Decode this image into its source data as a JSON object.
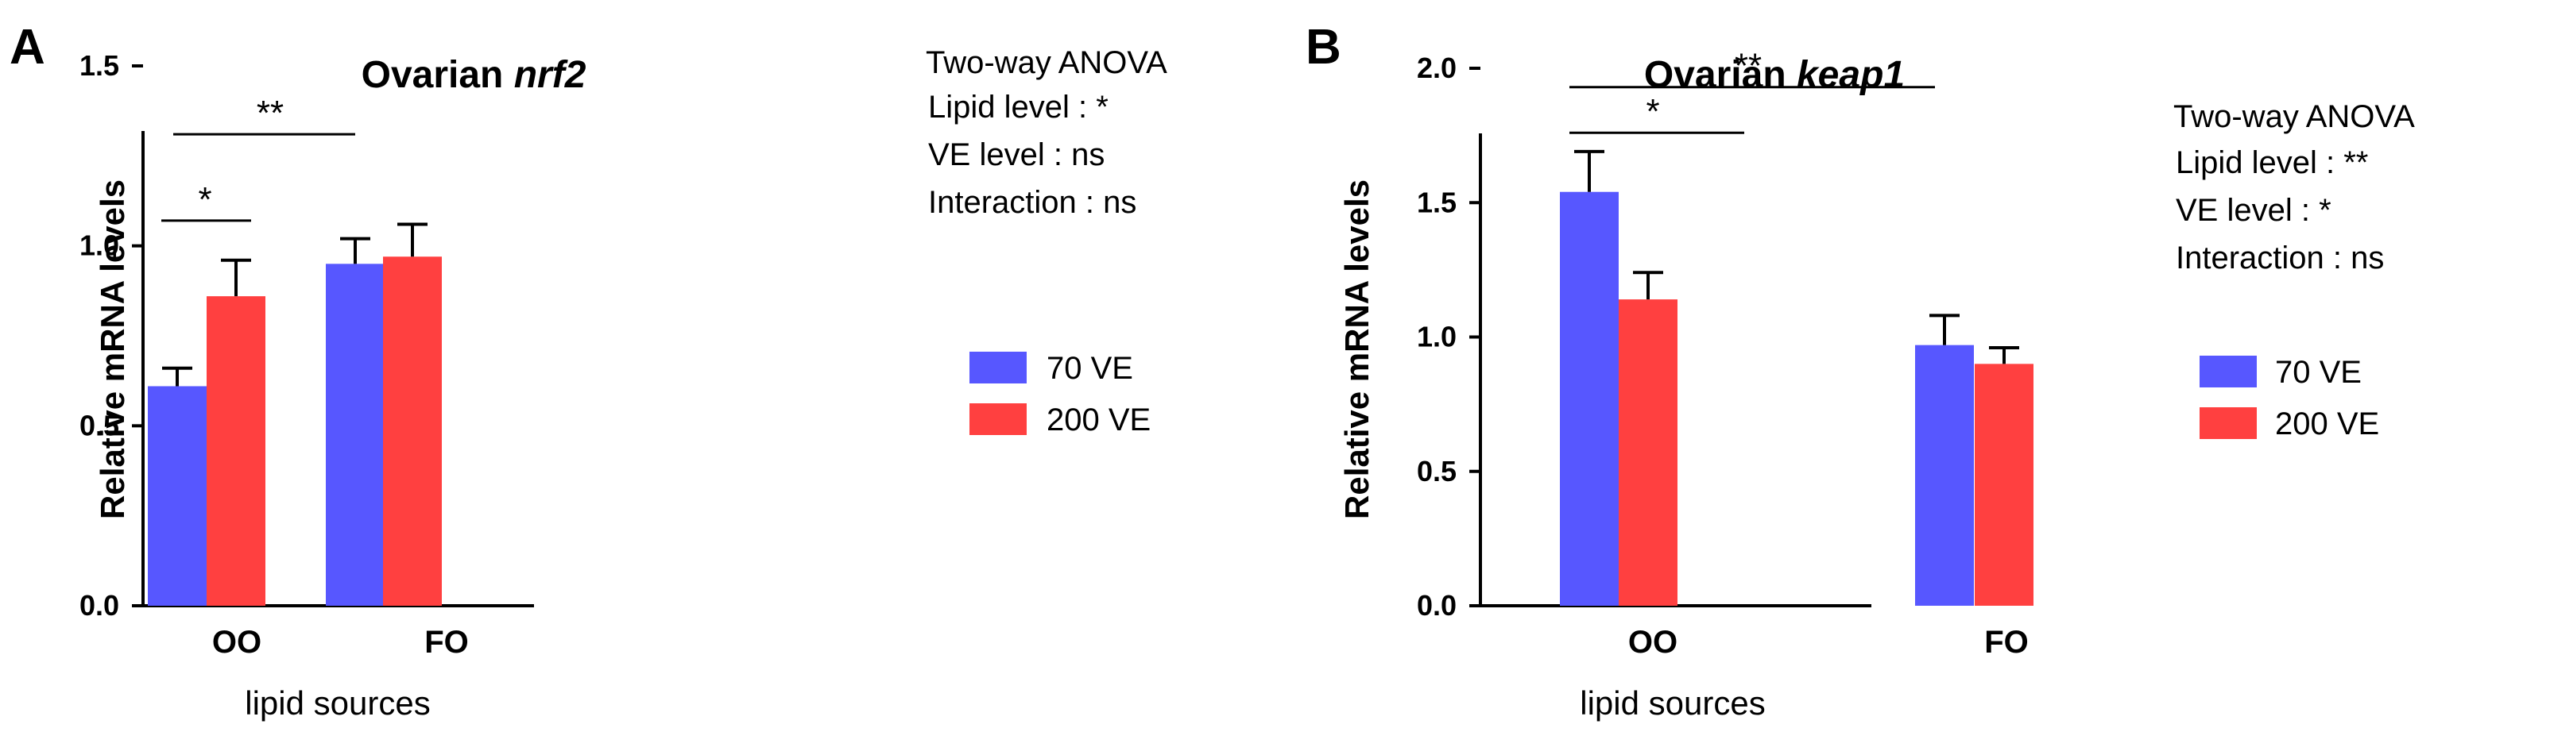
{
  "chart_data": [
    {
      "type": "bar",
      "panel": "A",
      "title_prefix": "Ovarian ",
      "title_gene": "nrf2",
      "ylabel": "Relative mRNA  levels",
      "xlabel": "lipid sources",
      "ylim": [
        0,
        1.5
      ],
      "yticks": [
        "0.0",
        "0.5",
        "1.0",
        "1.5"
      ],
      "categories": [
        "OO",
        "FO"
      ],
      "series": [
        {
          "name": "70   VE",
          "color": "#5757ff",
          "values": [
            0.61,
            0.95
          ],
          "errors": [
            0.05,
            0.07
          ]
        },
        {
          "name": "200 VE",
          "color": "#ff4040",
          "values": [
            0.86,
            0.97
          ],
          "errors": [
            0.1,
            0.09
          ]
        }
      ],
      "significance": [
        {
          "label": "*",
          "level": 1.07
        },
        {
          "label": "**",
          "level": 1.31
        }
      ],
      "anova": {
        "heading": "Two-way ANOVA",
        "rows": [
          "Lipid level  : *",
          "VE    level  : ns",
          "Interaction : ns"
        ]
      }
    },
    {
      "type": "bar",
      "panel": "B",
      "title_prefix": "Ovarian ",
      "title_gene": "keap1",
      "ylabel": "Relative mRNA  levels",
      "xlabel": "lipid sources",
      "ylim": [
        0,
        2.0
      ],
      "yticks": [
        "0.0",
        "0.5",
        "1.0",
        "1.5",
        "2.0"
      ],
      "categories": [
        "OO",
        "FO"
      ],
      "series": [
        {
          "name": "70   VE",
          "color": "#5757ff",
          "values": [
            1.54,
            0.97
          ],
          "errors": [
            0.15,
            0.11
          ]
        },
        {
          "name": "200 VE",
          "color": "#ff4040",
          "values": [
            1.14,
            0.9
          ],
          "errors": [
            0.1,
            0.06
          ]
        }
      ],
      "significance": [
        {
          "label": "*",
          "level": 1.76
        },
        {
          "label": "**",
          "level": 1.93
        }
      ],
      "anova": {
        "heading": "Two-way ANOVA",
        "rows": [
          "Lipid level  : **",
          "VE    level  : *",
          "Interaction : ns"
        ]
      }
    }
  ]
}
